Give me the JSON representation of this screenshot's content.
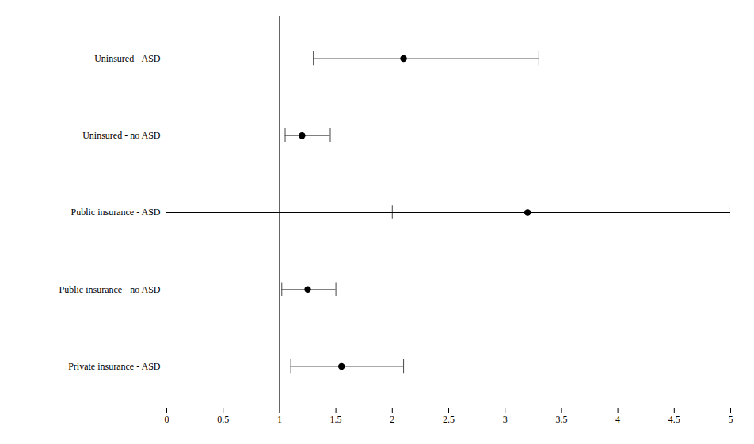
{
  "chart_data": {
    "type": "forest",
    "categories": [
      "Uninsured - ASD",
      "Uninsured - no ASD",
      "Public insurance - ASD",
      "Public insurance - no ASD",
      "Private insurance - ASD"
    ],
    "values": [
      2.1,
      1.2,
      3.2,
      1.25,
      1.55
    ],
    "color": "#000000",
    "error_bars": {
      "low": [
        1.3,
        1.05,
        2.0,
        1.02,
        1.1
      ],
      "high": [
        3.3,
        1.45,
        5.0,
        1.5,
        2.1
      ],
      "color": "#555555"
    },
    "reference_line": {
      "x": 1.0,
      "color": "#000000"
    },
    "xlim": [
      0,
      5
    ],
    "xticks": [
      0,
      0.5,
      1,
      1.5,
      2,
      2.5,
      3,
      3.5,
      4,
      4.5,
      5
    ],
    "grid": false
  }
}
